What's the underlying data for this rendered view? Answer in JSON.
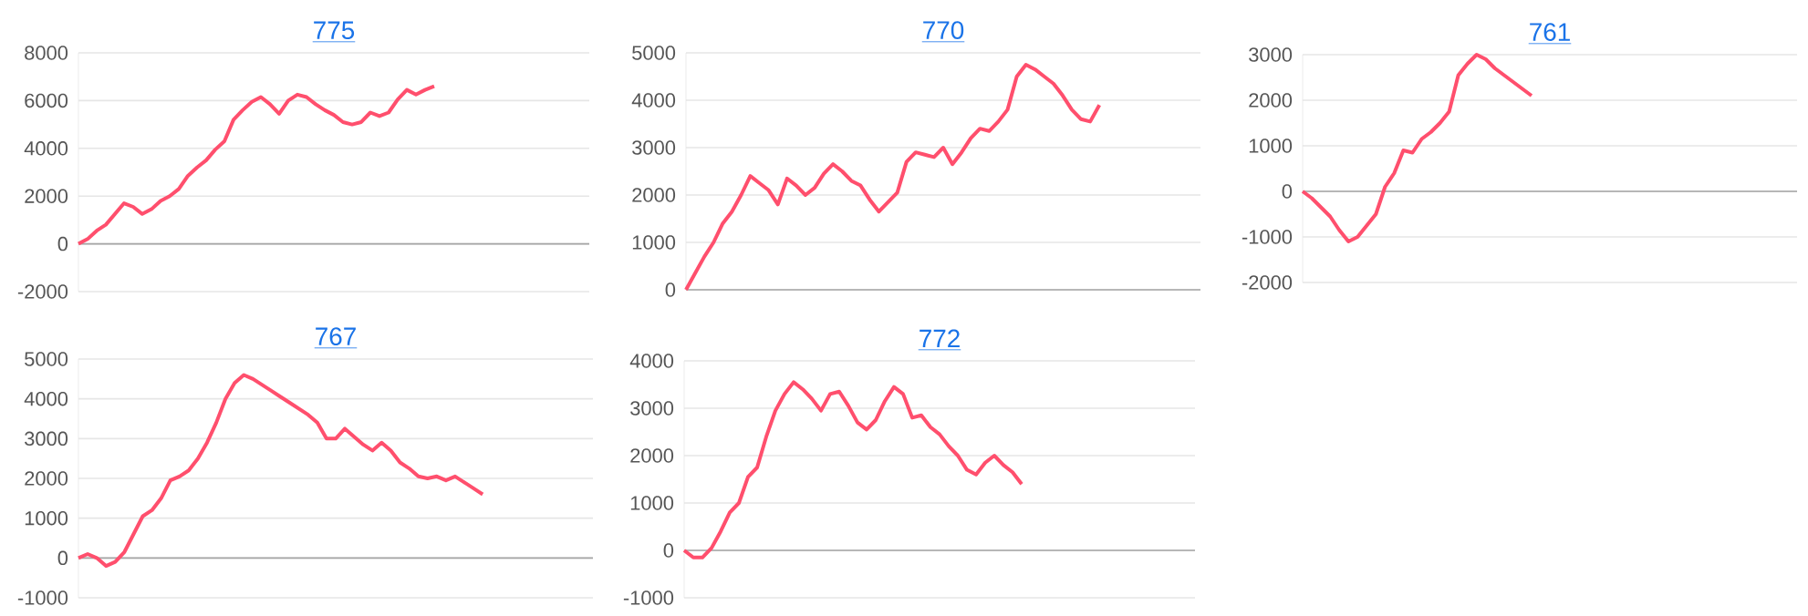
{
  "chart_data": [
    {
      "type": "line",
      "title": "775",
      "categories": [
        null,
        null,
        null,
        null,
        null,
        null,
        null,
        null,
        null,
        null,
        null,
        null,
        null,
        null,
        null,
        null,
        null,
        null,
        null,
        null,
        null,
        null,
        null,
        null,
        null,
        null,
        null,
        null,
        null,
        null,
        null,
        null,
        null,
        null,
        null,
        null,
        null,
        null,
        null,
        null,
        null,
        null,
        null,
        null,
        null,
        null,
        null,
        null,
        null,
        null,
        null,
        null,
        null,
        null,
        null,
        null,
        null
      ],
      "values": [
        0,
        200,
        550,
        800,
        1250,
        1700,
        1550,
        1250,
        1450,
        1800,
        2000,
        2300,
        2850,
        3200,
        3500,
        3950,
        4300,
        5200,
        5600,
        5950,
        6150,
        5850,
        5450,
        6000,
        6250,
        6150,
        5850,
        5600,
        5400,
        5100,
        5000,
        5100,
        5500,
        5350,
        5500,
        6050,
        6450,
        6250,
        6450,
        6600,
        null,
        null,
        null,
        null,
        null,
        null,
        null,
        null,
        null,
        null,
        null,
        null,
        null,
        null,
        null,
        null,
        null
      ],
      "color": "#ff4f6d",
      "ylim": [
        -2000,
        8000
      ],
      "yticks": [
        -2000,
        0,
        2000,
        4000,
        6000,
        8000
      ],
      "grid": "y",
      "tick_labels": "y"
    },
    {
      "type": "line",
      "title": "770",
      "categories": [
        null,
        null,
        null,
        null,
        null,
        null,
        null,
        null,
        null,
        null,
        null,
        null,
        null,
        null,
        null,
        null,
        null,
        null,
        null,
        null,
        null,
        null,
        null,
        null,
        null,
        null,
        null,
        null,
        null,
        null,
        null,
        null,
        null,
        null,
        null,
        null,
        null,
        null,
        null,
        null,
        null,
        null,
        null,
        null,
        null,
        null,
        null,
        null,
        null,
        null,
        null,
        null,
        null,
        null,
        null,
        null,
        null
      ],
      "values": [
        0,
        350,
        700,
        1000,
        1400,
        1650,
        2000,
        2400,
        2250,
        2100,
        1800,
        2350,
        2200,
        2000,
        2150,
        2450,
        2650,
        2500,
        2300,
        2200,
        1900,
        1650,
        1850,
        2050,
        2700,
        2900,
        2850,
        2800,
        3000,
        2650,
        2900,
        3200,
        3400,
        3350,
        3550,
        3800,
        4500,
        4750,
        4650,
        4500,
        4350,
        4100,
        3800,
        3600,
        3550,
        3900,
        null,
        null,
        null,
        null,
        null,
        null,
        null,
        null,
        null,
        null,
        null
      ],
      "color": "#ff4f6d",
      "ylim": [
        0,
        5000
      ],
      "yticks": [
        0,
        1000,
        2000,
        3000,
        4000,
        5000
      ],
      "grid": "y",
      "tick_labels": "y"
    },
    {
      "type": "line",
      "title": "761",
      "categories": [
        null,
        null,
        null,
        null,
        null,
        null,
        null,
        null,
        null,
        null,
        null,
        null,
        null,
        null,
        null,
        null,
        null,
        null,
        null,
        null,
        null,
        null,
        null,
        null,
        null,
        null,
        null,
        null,
        null,
        null,
        null,
        null,
        null,
        null,
        null,
        null,
        null,
        null,
        null,
        null,
        null,
        null,
        null,
        null,
        null,
        null,
        null,
        null,
        null,
        null,
        null,
        null,
        null,
        null,
        null
      ],
      "values": [
        0,
        -150,
        -350,
        -550,
        -850,
        -1100,
        -1000,
        -750,
        -500,
        100,
        400,
        900,
        850,
        1150,
        1300,
        1500,
        1750,
        2550,
        2800,
        3000,
        2900,
        2700,
        2550,
        2400,
        2250,
        2100,
        null,
        null,
        null,
        null,
        null,
        null,
        null,
        null,
        null,
        null,
        null,
        null,
        null,
        null,
        null,
        null,
        null,
        null,
        null,
        null,
        null,
        null,
        null,
        null,
        null,
        null,
        null,
        null,
        null
      ],
      "color": "#ff4f6d",
      "ylim": [
        -2000,
        3000
      ],
      "yticks": [
        -2000,
        -1000,
        0,
        1000,
        2000,
        3000
      ],
      "grid": "y",
      "tick_labels": "y"
    },
    {
      "type": "line",
      "title": "767",
      "categories": [
        null,
        null,
        null,
        null,
        null,
        null,
        null,
        null,
        null,
        null,
        null,
        null,
        null,
        null,
        null,
        null,
        null,
        null,
        null,
        null,
        null,
        null,
        null,
        null,
        null,
        null,
        null,
        null,
        null,
        null,
        null,
        null,
        null,
        null,
        null,
        null,
        null,
        null,
        null,
        null,
        null,
        null,
        null,
        null,
        null,
        null,
        null,
        null,
        null,
        null,
        null,
        null,
        null,
        null,
        null,
        null,
        null
      ],
      "values": [
        0,
        100,
        0,
        -200,
        -100,
        150,
        600,
        1050,
        1200,
        1500,
        1950,
        2050,
        2200,
        2500,
        2900,
        3400,
        4000,
        4400,
        4600,
        4500,
        4350,
        4200,
        4050,
        3900,
        3750,
        3600,
        3400,
        3000,
        3000,
        3250,
        3050,
        2850,
        2700,
        2900,
        2700,
        2400,
        2250,
        2050,
        2000,
        2050,
        1950,
        2050,
        1900,
        1750,
        1600,
        null,
        null,
        null,
        null,
        null,
        null,
        null,
        null,
        null,
        null,
        null,
        null
      ],
      "color": "#ff4f6d",
      "ylim": [
        -1000,
        5000
      ],
      "yticks": [
        -1000,
        0,
        1000,
        2000,
        3000,
        4000,
        5000
      ],
      "grid": "y",
      "tick_labels": "y"
    },
    {
      "type": "line",
      "title": "772",
      "categories": [
        null,
        null,
        null,
        null,
        null,
        null,
        null,
        null,
        null,
        null,
        null,
        null,
        null,
        null,
        null,
        null,
        null,
        null,
        null,
        null,
        null,
        null,
        null,
        null,
        null,
        null,
        null,
        null,
        null,
        null,
        null,
        null,
        null,
        null,
        null,
        null,
        null,
        null,
        null,
        null,
        null,
        null,
        null,
        null,
        null,
        null,
        null,
        null,
        null,
        null,
        null,
        null,
        null,
        null,
        null,
        null,
        null
      ],
      "values": [
        0,
        -150,
        -150,
        50,
        400,
        800,
        1000,
        1550,
        1750,
        2400,
        2950,
        3300,
        3550,
        3400,
        3200,
        2950,
        3300,
        3350,
        3050,
        2700,
        2550,
        2750,
        3150,
        3450,
        3300,
        2800,
        2850,
        2600,
        2450,
        2200,
        2000,
        1700,
        1600,
        1850,
        2000,
        1800,
        1650,
        1400,
        null,
        null,
        null,
        null,
        null,
        null,
        null,
        null,
        null,
        null,
        null,
        null,
        null,
        null,
        null,
        null,
        null,
        null,
        null
      ],
      "color": "#ff4f6d",
      "ylim": [
        -1000,
        4000
      ],
      "yticks": [
        -1000,
        0,
        1000,
        2000,
        3000,
        4000
      ],
      "grid": "y",
      "tick_labels": "y"
    }
  ]
}
